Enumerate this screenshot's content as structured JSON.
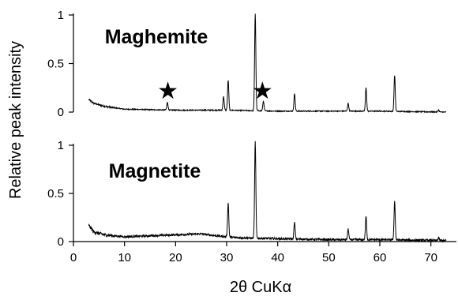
{
  "chart_data": {
    "type": "line",
    "xlabel": "2θ  CuKα",
    "ylabel": "Relative peak intensity",
    "xlim": [
      0,
      75
    ],
    "x_ticks": [
      0,
      10,
      20,
      30,
      40,
      50,
      60,
      70
    ],
    "x_tick_labels": [
      "0",
      "10",
      "20",
      "30",
      "40",
      "50",
      "60",
      "70"
    ],
    "grid": false,
    "panels": [
      {
        "name": "Maghemite",
        "ylim": [
          0,
          1
        ],
        "y_ticks": [
          0,
          0.5,
          1
        ],
        "y_tick_labels": [
          "0",
          "0.5",
          "1"
        ],
        "annotations": [
          {
            "text": "★",
            "x": 18.5
          },
          {
            "text": "★",
            "x": 37.0
          }
        ],
        "background": [
          [
            3,
            0.13
          ],
          [
            4,
            0.09
          ],
          [
            6,
            0.06
          ],
          [
            10,
            0.03
          ],
          [
            20,
            0.02
          ],
          [
            30,
            0.02
          ],
          [
            40,
            0.01
          ],
          [
            50,
            0.01
          ],
          [
            60,
            0.01
          ],
          [
            73,
            0.0
          ]
        ],
        "peaks": [
          {
            "x": 18.4,
            "y": 0.08
          },
          {
            "x": 29.4,
            "y": 0.14
          },
          {
            "x": 30.3,
            "y": 0.31
          },
          {
            "x": 35.6,
            "y": 1.0
          },
          {
            "x": 37.2,
            "y": 0.1
          },
          {
            "x": 43.3,
            "y": 0.18
          },
          {
            "x": 53.8,
            "y": 0.08
          },
          {
            "x": 57.3,
            "y": 0.24
          },
          {
            "x": 62.9,
            "y": 0.37
          },
          {
            "x": 71.5,
            "y": 0.02
          }
        ]
      },
      {
        "name": "Magnetite",
        "ylim": [
          0,
          1
        ],
        "y_ticks": [
          0,
          0.5,
          1
        ],
        "y_tick_labels": [
          "0",
          "0.5",
          "1"
        ],
        "annotations": [],
        "background": [
          [
            3,
            0.17
          ],
          [
            4,
            0.1
          ],
          [
            6,
            0.07
          ],
          [
            10,
            0.05
          ],
          [
            15,
            0.06
          ],
          [
            20,
            0.07
          ],
          [
            25,
            0.08
          ],
          [
            28,
            0.06
          ],
          [
            32,
            0.04
          ],
          [
            40,
            0.03
          ],
          [
            50,
            0.02
          ],
          [
            60,
            0.02
          ],
          [
            73,
            0.01
          ]
        ],
        "peaks": [
          {
            "x": 30.3,
            "y": 0.35
          },
          {
            "x": 35.6,
            "y": 1.0
          },
          {
            "x": 43.3,
            "y": 0.17
          },
          {
            "x": 53.8,
            "y": 0.11
          },
          {
            "x": 57.3,
            "y": 0.24
          },
          {
            "x": 62.9,
            "y": 0.4
          },
          {
            "x": 71.5,
            "y": 0.03
          }
        ]
      }
    ]
  }
}
